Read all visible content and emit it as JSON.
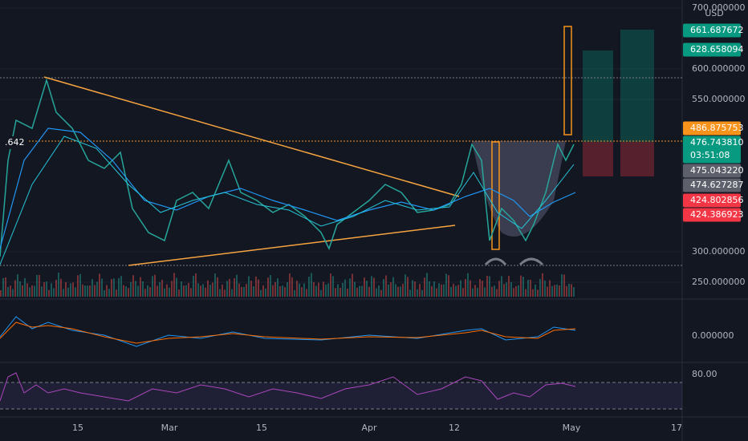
{
  "header": {
    "currency": "USD",
    "left_label": ".642"
  },
  "price_axis": {
    "ticks": [
      {
        "value": 700,
        "label": "700.000000"
      },
      {
        "value": 600,
        "label": "600.000000"
      },
      {
        "value": 550,
        "label": "550.000000"
      },
      {
        "value": 300,
        "label": "300.000000"
      },
      {
        "value": 250,
        "label": "250.000000"
      }
    ]
  },
  "price_tags": [
    {
      "label": "661.687672",
      "color": "#089981"
    },
    {
      "label": "628.658094",
      "color": "#089981"
    },
    {
      "label": "486.875753",
      "color": "#f7931a"
    },
    {
      "label": "476.743810",
      "sub": "03:51:08",
      "color": "#089981"
    },
    {
      "label": "475.043220",
      "color": "#5d606b"
    },
    {
      "label": "474.627287",
      "color": "#5d606b"
    },
    {
      "label": "424.802856",
      "color": "#f23645"
    },
    {
      "label": "424.386923",
      "color": "#f23645"
    }
  ],
  "macd_axis": {
    "label": "0.000000"
  },
  "rsi_axis": {
    "label": "80.00"
  },
  "time_axis": {
    "labels": [
      "15",
      "Mar",
      "15",
      "Apr",
      "12",
      "May",
      "17"
    ]
  }
}
